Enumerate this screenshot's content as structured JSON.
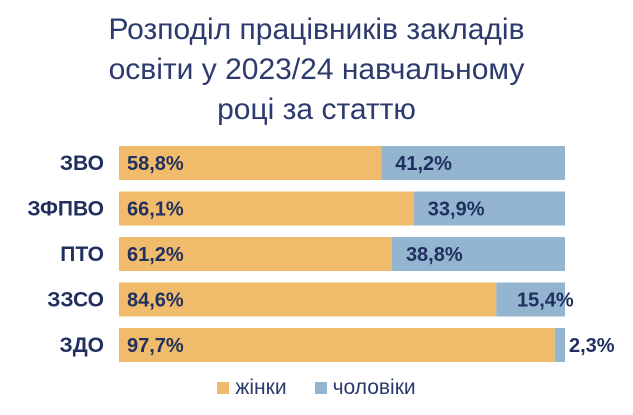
{
  "title_lines": [
    "Розподіл працівників закладів",
    "освіти у 2023/24 навчальному",
    "році за статтю"
  ],
  "colors": {
    "women": "#f0bc6b",
    "men": "#93b5d0",
    "text": "#1f2f5e",
    "title": "#2c3a6e"
  },
  "chart_data": {
    "type": "bar",
    "orientation": "horizontal",
    "stacked": true,
    "categories": [
      "ЗВО",
      "ЗФПВО",
      "ПТО",
      "ЗЗСО",
      "ЗДО"
    ],
    "series": [
      {
        "name": "жінки",
        "values": [
          58.8,
          66.1,
          61.2,
          84.6,
          97.7
        ],
        "labels": [
          "58,8%",
          "66,1%",
          "61,2%",
          "84,6%",
          "97,7%"
        ]
      },
      {
        "name": "чоловіки",
        "values": [
          41.2,
          33.9,
          38.8,
          15.4,
          2.3
        ],
        "labels": [
          "41,2%",
          "33,9%",
          "38,8%",
          "15,4%",
          "2,3%"
        ]
      }
    ],
    "xlim": [
      0,
      100
    ],
    "legend_position": "bottom",
    "grid": false
  }
}
